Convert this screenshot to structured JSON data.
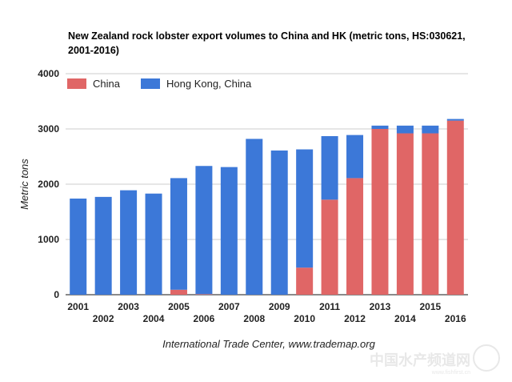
{
  "chart_data": {
    "type": "bar",
    "stacked": true,
    "title": "New Zealand rock lobster export volumes to China and HK (metric tons, HS:030621, 2001-2016)",
    "xlabel": "",
    "ylabel": "Metric tons",
    "ylim": [
      0,
      4000
    ],
    "yticks": [
      "0",
      "1000",
      "2000",
      "3000",
      "4000"
    ],
    "grid": true,
    "legend_position": "top-left",
    "categories": [
      "2001",
      "2002",
      "2003",
      "2004",
      "2005",
      "2006",
      "2007",
      "2008",
      "2009",
      "2010",
      "2011",
      "2012",
      "2013",
      "2014",
      "2015",
      "2016"
    ],
    "series": [
      {
        "name": "China",
        "color": "#e06666",
        "values": [
          0,
          0,
          0,
          0,
          90,
          10,
          0,
          0,
          0,
          490,
          1720,
          2110,
          3000,
          2920,
          2920,
          3150
        ]
      },
      {
        "name": "Hong Kong, China",
        "color": "#3c78d8",
        "values": [
          1740,
          1770,
          1890,
          1830,
          2020,
          2320,
          2310,
          2820,
          2610,
          2140,
          1150,
          780,
          60,
          140,
          140,
          30
        ]
      }
    ],
    "source": "International Trade Center, www.trademap.org"
  },
  "watermark": {
    "text": "中国水产频道网",
    "subtext": "www.fishfirst.cn"
  }
}
